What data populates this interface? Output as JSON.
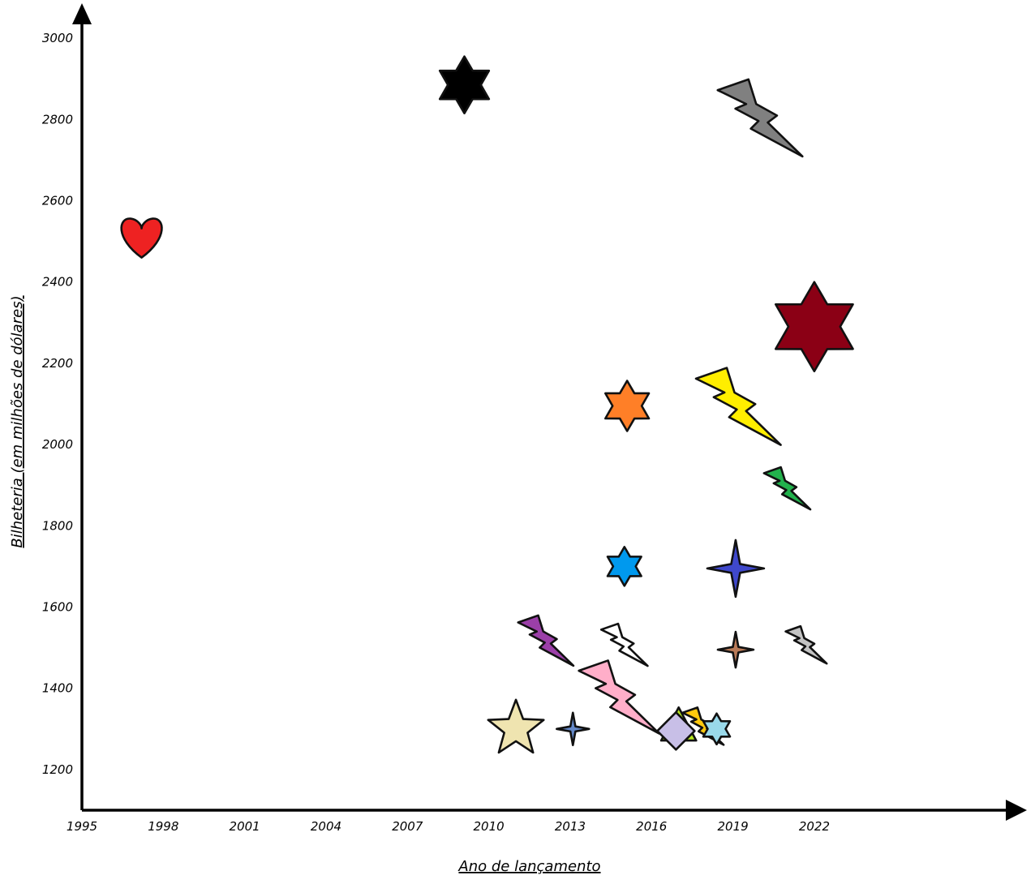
{
  "chart_data": {
    "type": "scatter",
    "xlabel": "Ano de lançamento",
    "ylabel": "Bilheteria (em milhões de dólares)",
    "x_ticks": [
      1995,
      1998,
      2001,
      2004,
      2007,
      2010,
      2013,
      2016,
      2019,
      2022
    ],
    "y_ticks": [
      1200,
      1400,
      1600,
      1800,
      2000,
      2200,
      2400,
      2600,
      2800,
      3000
    ],
    "xlim": [
      1995,
      2029
    ],
    "ylim": [
      1100,
      3050
    ],
    "grid": false,
    "points": [
      {
        "x": 1997.2,
        "y": 2505,
        "marker": "heart",
        "size": 60,
        "color": "#ee2222"
      },
      {
        "x": 2009.1,
        "y": 2885,
        "marker": "hexagram",
        "size": 70,
        "color": "#000000"
      },
      {
        "x": 2020.0,
        "y": 2800,
        "marker": "bolt",
        "size": 95,
        "color": "#808080"
      },
      {
        "x": 2022.0,
        "y": 2290,
        "marker": "hexagram",
        "size": 110,
        "color": "#8b0015"
      },
      {
        "x": 2015.1,
        "y": 2095,
        "marker": "hexagram",
        "size": 62,
        "color": "#ff7f27"
      },
      {
        "x": 2019.2,
        "y": 2090,
        "marker": "bolt",
        "size": 95,
        "color": "#ffee00"
      },
      {
        "x": 2021.0,
        "y": 1890,
        "marker": "bolt",
        "size": 52,
        "color": "#22b14c"
      },
      {
        "x": 2015.0,
        "y": 1700,
        "marker": "hexagram",
        "size": 48,
        "color": "#0099ee"
      },
      {
        "x": 2019.1,
        "y": 1695,
        "marker": "sparkle",
        "size": 70,
        "color": "#3f48cc"
      },
      {
        "x": 2012.1,
        "y": 1515,
        "marker": "bolt",
        "size": 62,
        "color": "#9b3fa8"
      },
      {
        "x": 2015.0,
        "y": 1505,
        "marker": "bolt",
        "size": 52,
        "color": "#ffffff"
      },
      {
        "x": 2019.1,
        "y": 1495,
        "marker": "sparkle",
        "size": 44,
        "color": "#b97a57"
      },
      {
        "x": 2021.7,
        "y": 1505,
        "marker": "bolt",
        "size": 46,
        "color": "#c3c3c3"
      },
      {
        "x": 2014.8,
        "y": 1375,
        "marker": "bolt",
        "size": 90,
        "color": "#ffaec9"
      },
      {
        "x": 2011.0,
        "y": 1300,
        "marker": "star",
        "size": 72,
        "color": "#efe4b0"
      },
      {
        "x": 2013.1,
        "y": 1300,
        "marker": "sparkle",
        "size": 40,
        "color": "#6488c8"
      },
      {
        "x": 2017.0,
        "y": 1305,
        "marker": "triangle",
        "size": 48,
        "color": "#b5e61d"
      },
      {
        "x": 2017.9,
        "y": 1305,
        "marker": "bolt",
        "size": 46,
        "color": "#ffc90e"
      },
      {
        "x": 2018.4,
        "y": 1300,
        "marker": "hexagram",
        "size": 38,
        "color": "#99d9ea"
      },
      {
        "x": 2016.9,
        "y": 1295,
        "marker": "diamond",
        "size": 46,
        "color": "#c8bfe7"
      }
    ]
  }
}
